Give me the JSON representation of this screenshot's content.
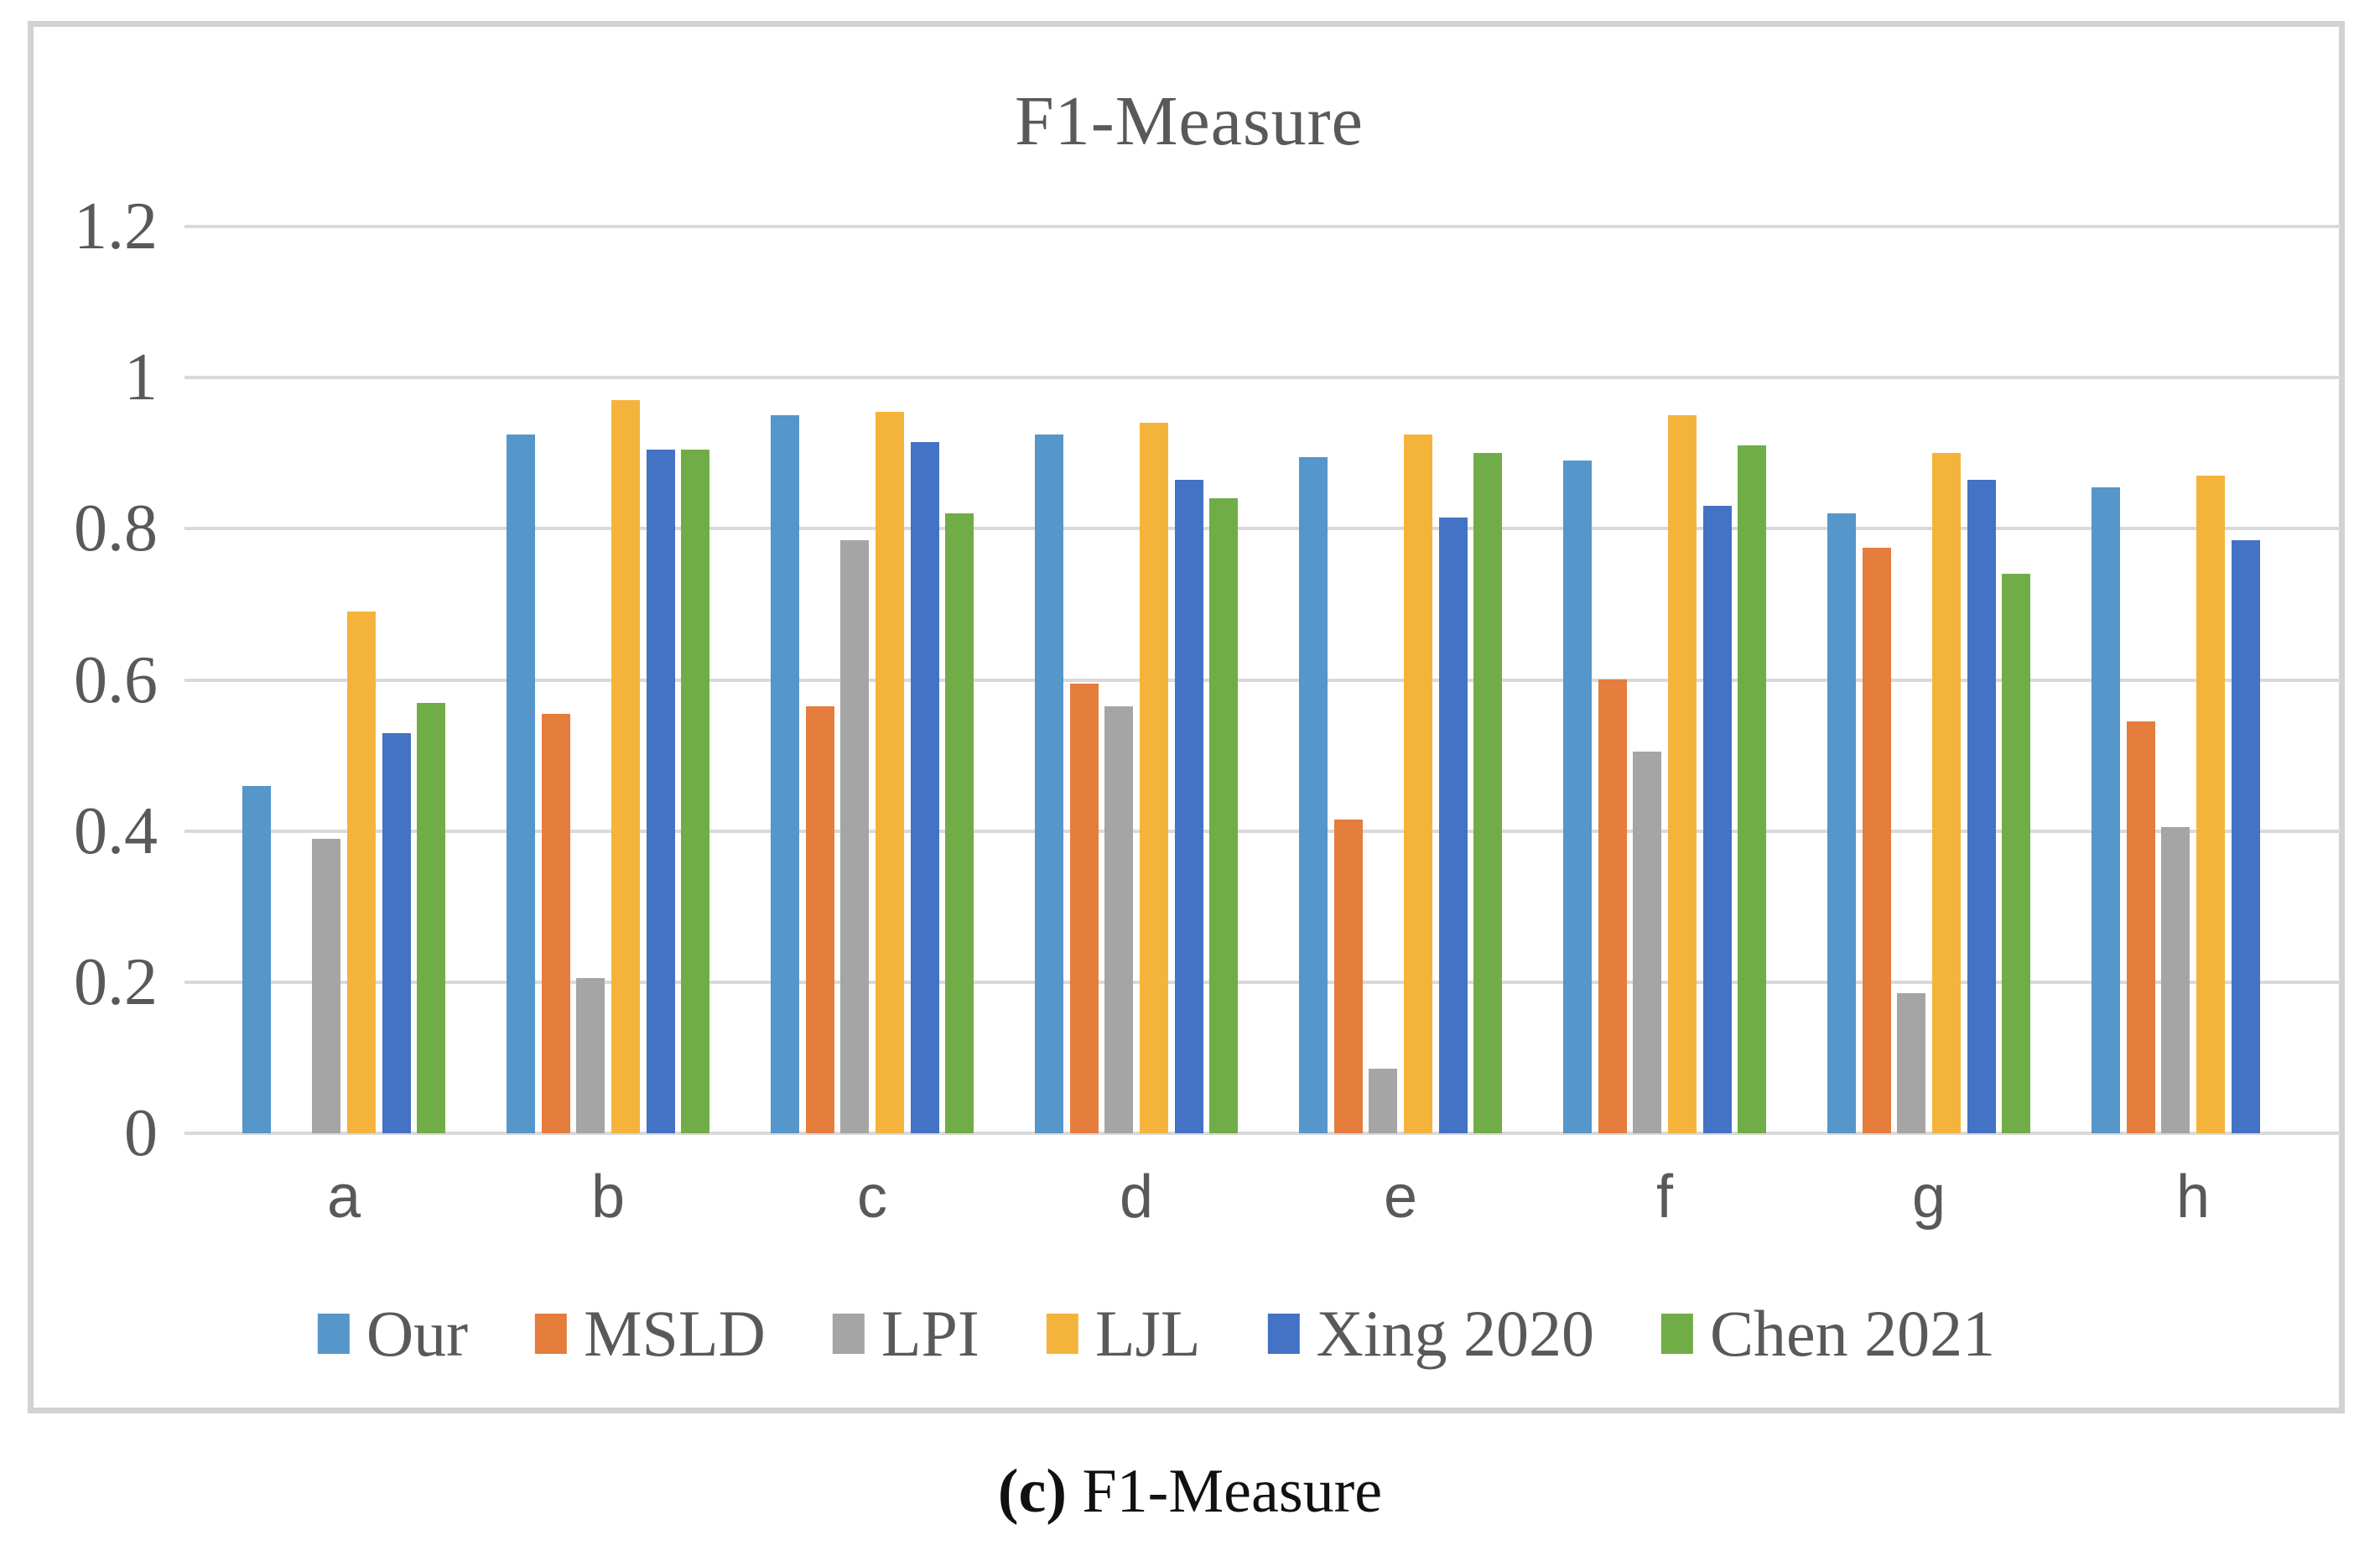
{
  "figure": {
    "title": "F1-Measure",
    "caption_prefix": "(c)",
    "caption_label": "F1-Measure"
  },
  "chart_data": {
    "type": "bar",
    "title": "F1-Measure",
    "categories": [
      "a",
      "b",
      "c",
      "d",
      "e",
      "f",
      "g",
      "h"
    ],
    "series": [
      {
        "name": "Our",
        "color": "#5596CB",
        "values": [
          0.46,
          0.925,
          0.95,
          0.925,
          0.895,
          0.89,
          0.82,
          0.855
        ]
      },
      {
        "name": "MSLD",
        "color": "#E57D3D",
        "values": [
          0,
          0.555,
          0.565,
          0.595,
          0.415,
          0.6,
          0.775,
          0.545
        ]
      },
      {
        "name": "LPI",
        "color": "#A5A5A5",
        "values": [
          0.39,
          0.205,
          0.785,
          0.565,
          0.085,
          0.505,
          0.185,
          0.405
        ]
      },
      {
        "name": "LJL",
        "color": "#F4B43C",
        "values": [
          0.69,
          0.97,
          0.955,
          0.94,
          0.925,
          0.95,
          0.9,
          0.87
        ]
      },
      {
        "name": "Xing 2020",
        "color": "#4472C4",
        "values": [
          0.53,
          0.905,
          0.915,
          0.865,
          0.815,
          0.83,
          0.865,
          0.785
        ]
      },
      {
        "name": "Chen 2021",
        "color": "#70AD47",
        "values": [
          0.57,
          0.905,
          0.82,
          0.84,
          0.9,
          0.91,
          0.74,
          0
        ]
      }
    ],
    "ylim": [
      0,
      1.2
    ],
    "ytick_labels": [
      "0",
      "0.2",
      "0.4",
      "0.6",
      "0.8",
      "1",
      "1.2"
    ],
    "grid": true,
    "legend_position": "bottom",
    "xlabel": "",
    "ylabel": ""
  }
}
